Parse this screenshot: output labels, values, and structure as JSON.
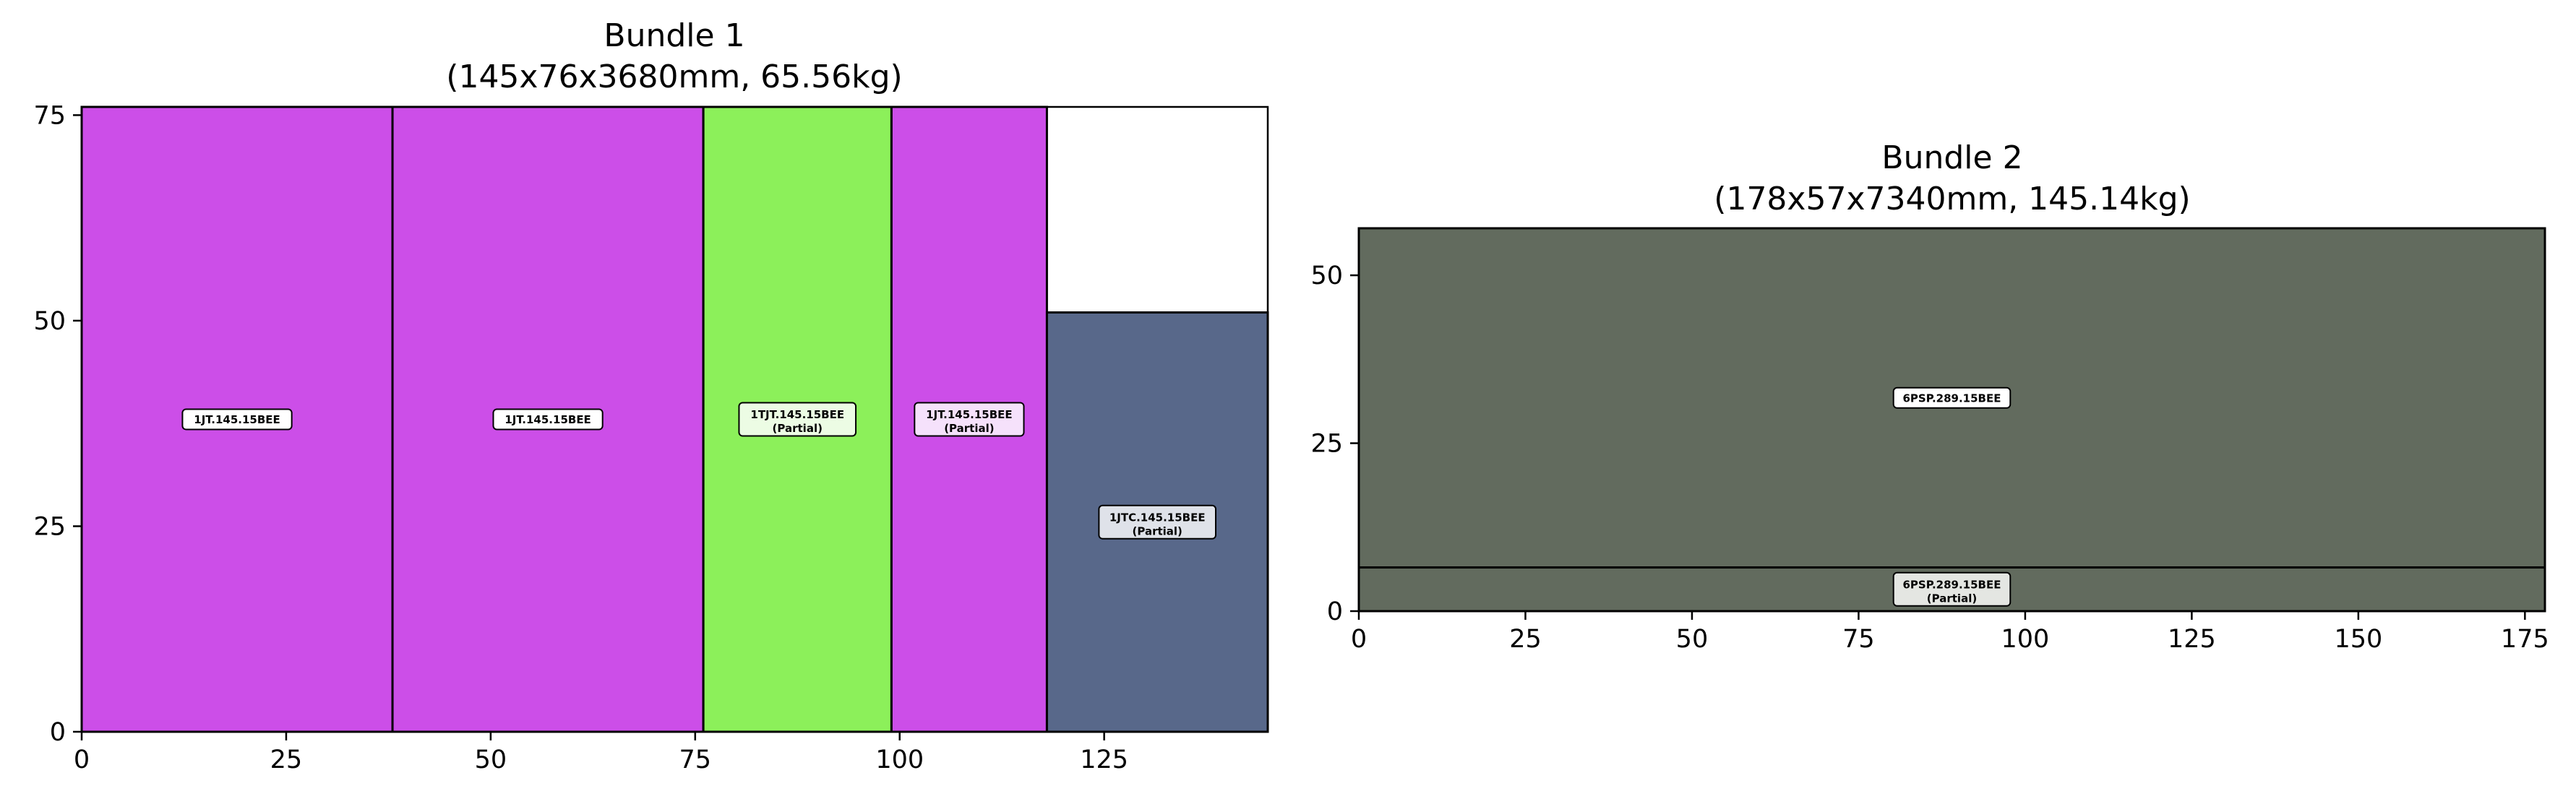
{
  "chart_data": [
    {
      "type": "rectangle-packing",
      "title": "Bundle 1",
      "subtitle": "(145x76x3680mm, 65.56kg)",
      "xlim": [
        0,
        145
      ],
      "ylim": [
        0,
        76
      ],
      "xticks": [
        0,
        25,
        50,
        75,
        100,
        125
      ],
      "yticks": [
        0,
        25,
        50,
        75
      ],
      "grid": false,
      "items": [
        {
          "label": "1JT.145.15BEE",
          "x0": 0,
          "x1": 38,
          "y0": 0,
          "y1": 76,
          "color": "#cc4ee8"
        },
        {
          "label": "1JT.145.15BEE",
          "x0": 38,
          "x1": 76,
          "y0": 0,
          "y1": 76,
          "color": "#cc4ee8"
        },
        {
          "label": "1TJT.145.15BEE",
          "sublabel": "(Partial)",
          "x0": 76,
          "x1": 99,
          "y0": 0,
          "y1": 76,
          "color": "#8cf05a",
          "label_bg": "#ecfce4"
        },
        {
          "label": "1JT.145.15BEE",
          "sublabel": "(Partial)",
          "x0": 99,
          "x1": 118,
          "y0": 0,
          "y1": 76,
          "color": "#cc4ee8",
          "label_bg": "#f5e1fb"
        },
        {
          "label": "1JTC.145.15BEE",
          "sublabel": "(Partial)",
          "x0": 118,
          "x1": 145,
          "y0": 0,
          "y1": 51,
          "color": "#58688a",
          "label_bg": "#dfe2e9"
        }
      ]
    },
    {
      "type": "rectangle-packing",
      "title": "Bundle 2",
      "subtitle": "(178x57x7340mm, 145.14kg)",
      "xlim": [
        0,
        178
      ],
      "ylim": [
        0,
        57
      ],
      "xticks": [
        0,
        25,
        50,
        75,
        100,
        125,
        150,
        175
      ],
      "yticks": [
        0,
        25,
        50
      ],
      "grid": false,
      "items": [
        {
          "label": "6PSP.289.15BEE",
          "x0": 0,
          "x1": 178,
          "y0": 6.5,
          "y1": 57,
          "color": "#626b5e"
        },
        {
          "label": "6PSP.289.15BEE",
          "sublabel": "(Partial)",
          "x0": 0,
          "x1": 178,
          "y0": 0,
          "y1": 6.5,
          "color": "#626b5e",
          "label_bg": "#e4e6e2"
        }
      ]
    }
  ]
}
